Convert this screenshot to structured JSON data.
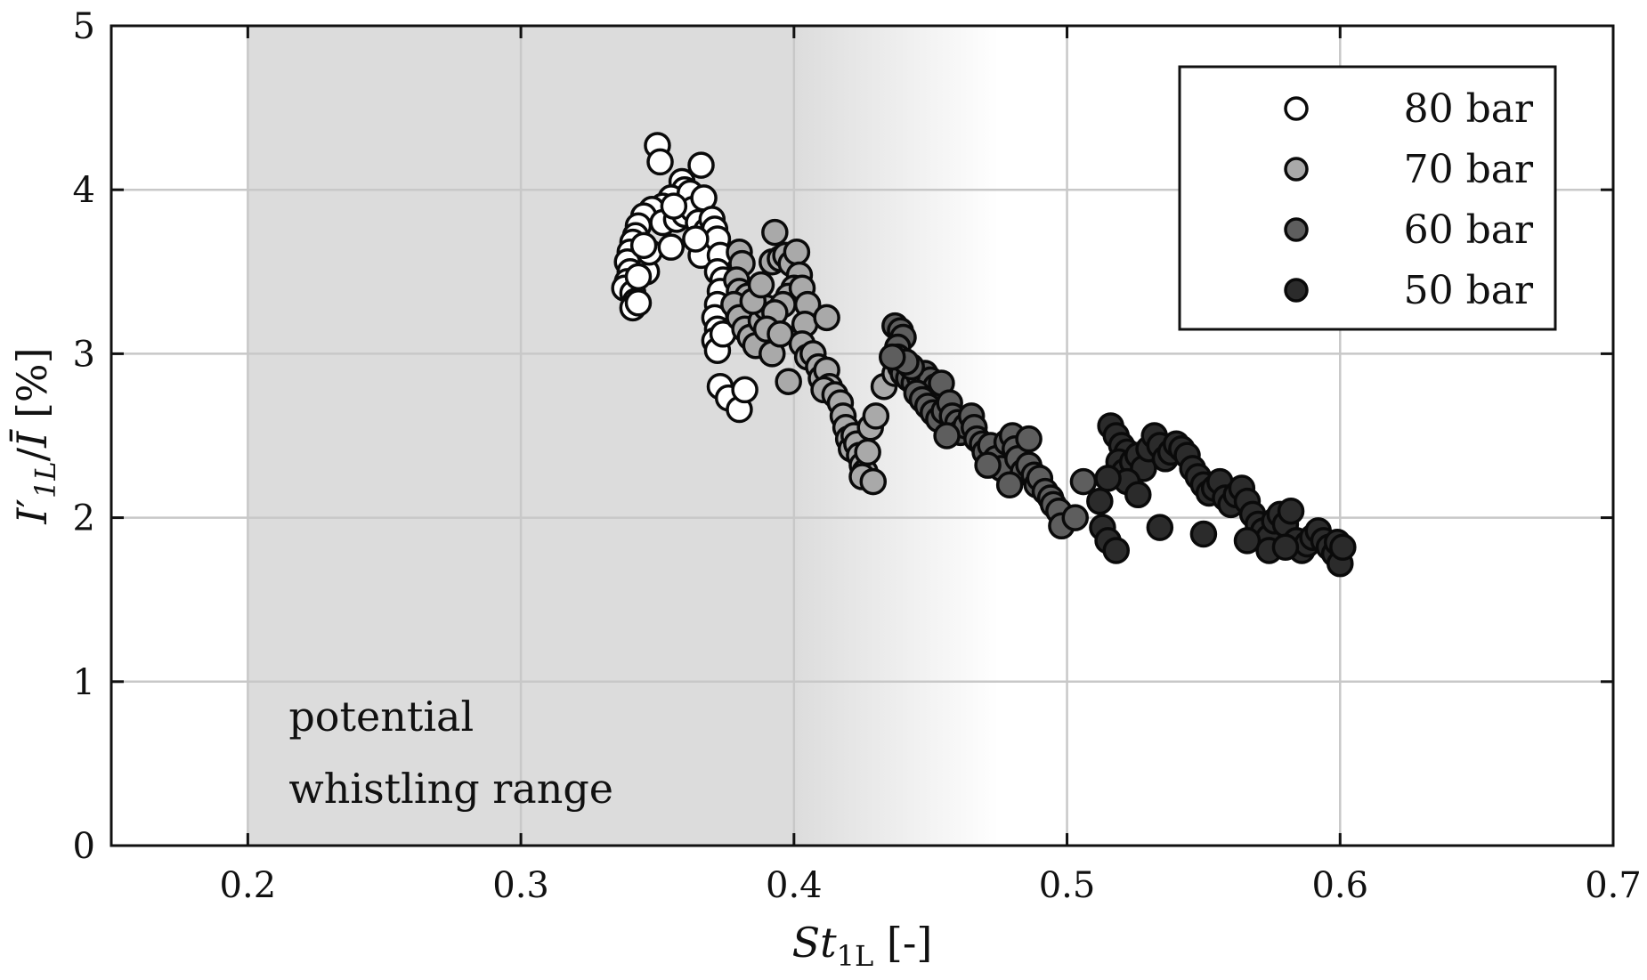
{
  "chart_data": {
    "type": "scatter",
    "title": "",
    "xlabel": "St_1L [-]",
    "xlabel_parts": {
      "main": "St",
      "sub": "1L",
      "unit": " [-]"
    },
    "ylabel": "I'_1L / Ī [%]",
    "ylabel_parts": {
      "main": "I",
      "prime": "′",
      "sub": "1L",
      "slash": "/",
      "bar": "Ī",
      "unit": " [%]"
    },
    "xlim": [
      0.15,
      0.7
    ],
    "ylim": [
      0,
      5
    ],
    "xticks": [
      0.2,
      0.3,
      0.4,
      0.5,
      0.6,
      0.7
    ],
    "xtick_labels": [
      "0.2",
      "0.3",
      "0.4",
      "0.5",
      "0.6",
      "0.7"
    ],
    "yticks": [
      0,
      1,
      2,
      3,
      4,
      5
    ],
    "ytick_labels": [
      "0",
      "1",
      "2",
      "3",
      "4",
      "5"
    ],
    "grid": true,
    "legend_position": "top-right",
    "annotation": {
      "lines": [
        "potential",
        "whistling range"
      ],
      "shaded_region_x": [
        0.2,
        0.4
      ],
      "fade_region_x": [
        0.4,
        0.475
      ]
    },
    "series": [
      {
        "name": "80 bar",
        "color": "#ffffff",
        "points": [
          [
            0.35,
            4.27
          ],
          [
            0.351,
            4.17
          ],
          [
            0.366,
            4.15
          ],
          [
            0.359,
            4.05
          ],
          [
            0.36,
            4.0
          ],
          [
            0.355,
            3.95
          ],
          [
            0.362,
            3.98
          ],
          [
            0.352,
            3.9
          ],
          [
            0.348,
            3.88
          ],
          [
            0.345,
            3.84
          ],
          [
            0.343,
            3.78
          ],
          [
            0.342,
            3.72
          ],
          [
            0.341,
            3.68
          ],
          [
            0.34,
            3.62
          ],
          [
            0.339,
            3.56
          ],
          [
            0.34,
            3.5
          ],
          [
            0.339,
            3.44
          ],
          [
            0.338,
            3.4
          ],
          [
            0.341,
            3.37
          ],
          [
            0.342,
            3.32
          ],
          [
            0.341,
            3.28
          ],
          [
            0.343,
            3.31
          ],
          [
            0.346,
            3.5
          ],
          [
            0.347,
            3.62
          ],
          [
            0.355,
            3.65
          ],
          [
            0.352,
            3.8
          ],
          [
            0.357,
            3.82
          ],
          [
            0.36,
            3.85
          ],
          [
            0.363,
            3.88
          ],
          [
            0.365,
            3.8
          ],
          [
            0.367,
            3.95
          ],
          [
            0.368,
            3.75
          ],
          [
            0.366,
            3.6
          ],
          [
            0.37,
            3.82
          ],
          [
            0.371,
            3.76
          ],
          [
            0.372,
            3.7
          ],
          [
            0.373,
            3.6
          ],
          [
            0.372,
            3.5
          ],
          [
            0.374,
            3.45
          ],
          [
            0.373,
            3.38
          ],
          [
            0.372,
            3.3
          ],
          [
            0.371,
            3.22
          ],
          [
            0.372,
            3.15
          ],
          [
            0.371,
            3.08
          ],
          [
            0.372,
            3.02
          ],
          [
            0.374,
            3.12
          ],
          [
            0.373,
            2.8
          ],
          [
            0.376,
            2.73
          ],
          [
            0.38,
            2.66
          ],
          [
            0.382,
            2.78
          ],
          [
            0.356,
            3.9
          ],
          [
            0.345,
            3.66
          ],
          [
            0.343,
            3.47
          ],
          [
            0.364,
            3.7
          ]
        ]
      },
      {
        "name": "70 bar",
        "color": "#a9a9a9",
        "points": [
          [
            0.38,
            3.62
          ],
          [
            0.381,
            3.55
          ],
          [
            0.379,
            3.45
          ],
          [
            0.38,
            3.38
          ],
          [
            0.383,
            3.35
          ],
          [
            0.378,
            3.3
          ],
          [
            0.38,
            3.22
          ],
          [
            0.382,
            3.15
          ],
          [
            0.384,
            3.1
          ],
          [
            0.386,
            3.05
          ],
          [
            0.388,
            3.2
          ],
          [
            0.39,
            3.28
          ],
          [
            0.392,
            3.56
          ],
          [
            0.393,
            3.74
          ],
          [
            0.395,
            3.58
          ],
          [
            0.397,
            3.6
          ],
          [
            0.399,
            3.55
          ],
          [
            0.401,
            3.62
          ],
          [
            0.402,
            3.48
          ],
          [
            0.4,
            3.4
          ],
          [
            0.398,
            3.35
          ],
          [
            0.396,
            3.3
          ],
          [
            0.393,
            3.25
          ],
          [
            0.39,
            3.15
          ],
          [
            0.392,
            3.0
          ],
          [
            0.395,
            3.12
          ],
          [
            0.403,
            3.4
          ],
          [
            0.405,
            3.3
          ],
          [
            0.404,
            3.18
          ],
          [
            0.403,
            3.06
          ],
          [
            0.405,
            2.98
          ],
          [
            0.407,
            3.0
          ],
          [
            0.409,
            2.92
          ],
          [
            0.41,
            2.85
          ],
          [
            0.412,
            2.9
          ],
          [
            0.413,
            2.8
          ],
          [
            0.411,
            2.78
          ],
          [
            0.415,
            2.75
          ],
          [
            0.417,
            2.7
          ],
          [
            0.418,
            2.62
          ],
          [
            0.419,
            2.55
          ],
          [
            0.42,
            2.48
          ],
          [
            0.421,
            2.42
          ],
          [
            0.422,
            2.5
          ],
          [
            0.423,
            2.45
          ],
          [
            0.424,
            2.38
          ],
          [
            0.425,
            2.32
          ],
          [
            0.426,
            2.28
          ],
          [
            0.425,
            2.25
          ],
          [
            0.427,
            2.4
          ],
          [
            0.428,
            2.55
          ],
          [
            0.43,
            2.62
          ],
          [
            0.429,
            2.22
          ],
          [
            0.412,
            3.22
          ],
          [
            0.398,
            2.83
          ],
          [
            0.385,
            3.32
          ],
          [
            0.433,
            2.8
          ],
          [
            0.437,
            2.88
          ],
          [
            0.388,
            3.42
          ]
        ]
      },
      {
        "name": "60 bar",
        "color": "#5e5e5e",
        "points": [
          [
            0.437,
            3.17
          ],
          [
            0.439,
            3.14
          ],
          [
            0.44,
            3.1
          ],
          [
            0.438,
            3.04
          ],
          [
            0.438,
            2.98
          ],
          [
            0.439,
            2.92
          ],
          [
            0.44,
            2.88
          ],
          [
            0.442,
            2.85
          ],
          [
            0.444,
            2.82
          ],
          [
            0.446,
            2.86
          ],
          [
            0.448,
            2.88
          ],
          [
            0.45,
            2.84
          ],
          [
            0.452,
            2.8
          ],
          [
            0.454,
            2.82
          ],
          [
            0.445,
            2.76
          ],
          [
            0.447,
            2.72
          ],
          [
            0.449,
            2.68
          ],
          [
            0.451,
            2.64
          ],
          [
            0.453,
            2.6
          ],
          [
            0.455,
            2.65
          ],
          [
            0.457,
            2.7
          ],
          [
            0.458,
            2.62
          ],
          [
            0.46,
            2.58
          ],
          [
            0.461,
            2.52
          ],
          [
            0.463,
            2.56
          ],
          [
            0.465,
            2.62
          ],
          [
            0.466,
            2.55
          ],
          [
            0.467,
            2.48
          ],
          [
            0.469,
            2.45
          ],
          [
            0.47,
            2.4
          ],
          [
            0.472,
            2.44
          ],
          [
            0.474,
            2.36
          ],
          [
            0.476,
            2.3
          ],
          [
            0.478,
            2.46
          ],
          [
            0.48,
            2.5
          ],
          [
            0.481,
            2.42
          ],
          [
            0.482,
            2.36
          ],
          [
            0.484,
            2.28
          ],
          [
            0.486,
            2.32
          ],
          [
            0.488,
            2.26
          ],
          [
            0.489,
            2.2
          ],
          [
            0.49,
            2.24
          ],
          [
            0.492,
            2.16
          ],
          [
            0.494,
            2.12
          ],
          [
            0.495,
            2.08
          ],
          [
            0.497,
            2.04
          ],
          [
            0.498,
            1.95
          ],
          [
            0.503,
            2.0
          ],
          [
            0.506,
            2.22
          ],
          [
            0.486,
            2.48
          ],
          [
            0.479,
            2.2
          ],
          [
            0.471,
            2.32
          ],
          [
            0.456,
            2.5
          ],
          [
            0.443,
            2.92
          ],
          [
            0.441,
            2.95
          ],
          [
            0.436,
            2.98
          ]
        ]
      },
      {
        "name": "50 bar",
        "color": "#2b2b2b",
        "points": [
          [
            0.516,
            2.56
          ],
          [
            0.518,
            2.5
          ],
          [
            0.52,
            2.44
          ],
          [
            0.522,
            2.4
          ],
          [
            0.519,
            2.34
          ],
          [
            0.521,
            2.28
          ],
          [
            0.524,
            2.34
          ],
          [
            0.526,
            2.38
          ],
          [
            0.528,
            2.3
          ],
          [
            0.53,
            2.42
          ],
          [
            0.532,
            2.5
          ],
          [
            0.534,
            2.44
          ],
          [
            0.536,
            2.36
          ],
          [
            0.538,
            2.4
          ],
          [
            0.54,
            2.45
          ],
          [
            0.542,
            2.42
          ],
          [
            0.544,
            2.38
          ],
          [
            0.546,
            2.3
          ],
          [
            0.548,
            2.25
          ],
          [
            0.55,
            2.2
          ],
          [
            0.552,
            2.15
          ],
          [
            0.554,
            2.18
          ],
          [
            0.556,
            2.22
          ],
          [
            0.558,
            2.12
          ],
          [
            0.56,
            2.08
          ],
          [
            0.562,
            2.14
          ],
          [
            0.564,
            2.18
          ],
          [
            0.566,
            2.1
          ],
          [
            0.568,
            2.02
          ],
          [
            0.57,
            1.96
          ],
          [
            0.572,
            1.92
          ],
          [
            0.574,
            1.88
          ],
          [
            0.576,
            1.98
          ],
          [
            0.578,
            2.02
          ],
          [
            0.58,
            1.96
          ],
          [
            0.582,
            2.04
          ],
          [
            0.584,
            1.86
          ],
          [
            0.586,
            1.8
          ],
          [
            0.588,
            1.84
          ],
          [
            0.59,
            1.88
          ],
          [
            0.592,
            1.92
          ],
          [
            0.594,
            1.86
          ],
          [
            0.596,
            1.82
          ],
          [
            0.598,
            1.78
          ],
          [
            0.599,
            1.85
          ],
          [
            0.6,
            1.72
          ],
          [
            0.601,
            1.82
          ],
          [
            0.513,
            1.94
          ],
          [
            0.515,
            1.86
          ],
          [
            0.518,
            1.8
          ],
          [
            0.522,
            2.22
          ],
          [
            0.526,
            2.14
          ],
          [
            0.534,
            1.94
          ],
          [
            0.55,
            1.9
          ],
          [
            0.566,
            1.86
          ],
          [
            0.574,
            1.8
          ],
          [
            0.512,
            2.1
          ],
          [
            0.515,
            2.24
          ],
          [
            0.58,
            1.82
          ]
        ]
      }
    ]
  }
}
